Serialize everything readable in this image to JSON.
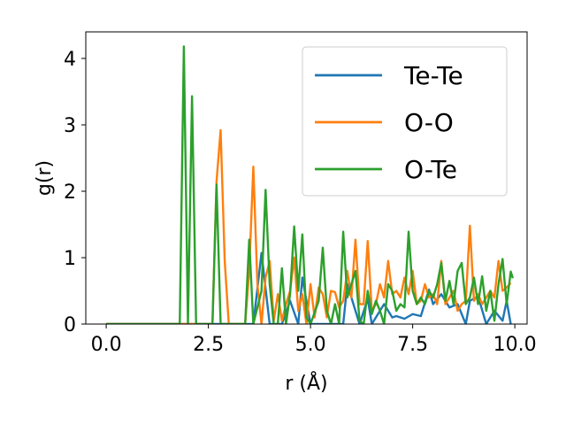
{
  "chart_data": {
    "type": "line",
    "title": "",
    "xlabel": "r (Å)",
    "ylabel": "g(r)",
    "xlim": [
      -0.5,
      10.3
    ],
    "ylim": [
      0,
      4.4
    ],
    "x_ticks": [
      0.0,
      2.5,
      5.0,
      7.5,
      10.0
    ],
    "x_tick_labels": [
      "0.0",
      "2.5",
      "5.0",
      "7.5",
      "10.0"
    ],
    "y_ticks": [
      0,
      1,
      2,
      3,
      4
    ],
    "y_tick_labels": [
      "0",
      "1",
      "2",
      "3",
      "4"
    ],
    "grid": false,
    "legend_position": "top-right",
    "series": [
      {
        "name": "Te-Te",
        "color": "#1f77b4",
        "points": [
          [
            0.0,
            0
          ],
          [
            3.6,
            0
          ],
          [
            3.8,
            1.07
          ],
          [
            4.0,
            0
          ],
          [
            4.1,
            0
          ],
          [
            4.3,
            0
          ],
          [
            4.5,
            0.35
          ],
          [
            4.7,
            0
          ],
          [
            4.8,
            0.7
          ],
          [
            5.0,
            0
          ],
          [
            5.8,
            0
          ],
          [
            5.9,
            0.6
          ],
          [
            6.0,
            0.4
          ],
          [
            6.2,
            0
          ],
          [
            6.4,
            0.38
          ],
          [
            6.5,
            0
          ],
          [
            6.8,
            0.3
          ],
          [
            7.0,
            0.1
          ],
          [
            7.1,
            0.12
          ],
          [
            7.3,
            0.08
          ],
          [
            7.5,
            0.15
          ],
          [
            7.7,
            0.12
          ],
          [
            7.9,
            0.52
          ],
          [
            8.0,
            0.3
          ],
          [
            8.2,
            0.45
          ],
          [
            8.4,
            0.25
          ],
          [
            8.6,
            0.3
          ],
          [
            8.8,
            0.0
          ],
          [
            8.9,
            0.35
          ],
          [
            9.1,
            0.42
          ],
          [
            9.3,
            0.0
          ],
          [
            9.5,
            0.2
          ],
          [
            9.7,
            0.05
          ],
          [
            9.8,
            0.35
          ],
          [
            9.9,
            0.0
          ]
        ]
      },
      {
        "name": "O-O",
        "color": "#ff7f0e",
        "points": [
          [
            0.0,
            0
          ],
          [
            2.6,
            0
          ],
          [
            2.7,
            2.15
          ],
          [
            2.8,
            2.92
          ],
          [
            2.9,
            0.95
          ],
          [
            3.0,
            0
          ],
          [
            3.4,
            0
          ],
          [
            3.5,
            0.8
          ],
          [
            3.6,
            2.37
          ],
          [
            3.7,
            0.6
          ],
          [
            3.8,
            0
          ],
          [
            3.9,
            0.7
          ],
          [
            4.0,
            0.95
          ],
          [
            4.1,
            0.05
          ],
          [
            4.2,
            0.45
          ],
          [
            4.3,
            0.05
          ],
          [
            4.4,
            0.3
          ],
          [
            4.5,
            0.5
          ],
          [
            4.6,
            1.0
          ],
          [
            4.7,
            0.2
          ],
          [
            4.8,
            0.45
          ],
          [
            4.9,
            0.0
          ],
          [
            5.0,
            0.6
          ],
          [
            5.1,
            0.1
          ],
          [
            5.2,
            0.55
          ],
          [
            5.3,
            0.45
          ],
          [
            5.4,
            0.1
          ],
          [
            5.5,
            0.5
          ],
          [
            5.6,
            0.48
          ],
          [
            5.7,
            0.25
          ],
          [
            5.8,
            0.35
          ],
          [
            5.9,
            0.8
          ],
          [
            6.0,
            0.4
          ],
          [
            6.1,
            1.27
          ],
          [
            6.2,
            0.3
          ],
          [
            6.3,
            0.3
          ],
          [
            6.4,
            1.25
          ],
          [
            6.5,
            0.2
          ],
          [
            6.6,
            0.3
          ],
          [
            6.7,
            0.6
          ],
          [
            6.8,
            0.4
          ],
          [
            6.9,
            0.95
          ],
          [
            7.0,
            0.45
          ],
          [
            7.1,
            0.5
          ],
          [
            7.2,
            0.4
          ],
          [
            7.3,
            0.7
          ],
          [
            7.4,
            0.45
          ],
          [
            7.5,
            0.8
          ],
          [
            7.6,
            0.3
          ],
          [
            7.7,
            0.35
          ],
          [
            7.8,
            0.6
          ],
          [
            7.9,
            0.4
          ],
          [
            8.0,
            0.45
          ],
          [
            8.1,
            0.3
          ],
          [
            8.2,
            0.95
          ],
          [
            8.3,
            0.3
          ],
          [
            8.4,
            0.4
          ],
          [
            8.5,
            0.5
          ],
          [
            8.6,
            0.2
          ],
          [
            8.7,
            0.3
          ],
          [
            8.8,
            0.35
          ],
          [
            8.9,
            1.48
          ],
          [
            9.0,
            0.35
          ],
          [
            9.1,
            0.45
          ],
          [
            9.2,
            0.3
          ],
          [
            9.3,
            0.4
          ],
          [
            9.4,
            0.5
          ],
          [
            9.5,
            0.4
          ],
          [
            9.6,
            0.95
          ],
          [
            9.7,
            0.5
          ],
          [
            9.8,
            0.55
          ],
          [
            9.9,
            0.62
          ]
        ]
      },
      {
        "name": "O-Te",
        "color": "#2ca02c",
        "points": [
          [
            0.0,
            0
          ],
          [
            1.8,
            0
          ],
          [
            1.9,
            4.18
          ],
          [
            2.0,
            0
          ],
          [
            2.1,
            3.43
          ],
          [
            2.2,
            0
          ],
          [
            2.6,
            0
          ],
          [
            2.7,
            2.1
          ],
          [
            2.8,
            0
          ],
          [
            3.4,
            0
          ],
          [
            3.5,
            1.27
          ],
          [
            3.6,
            0
          ],
          [
            3.8,
            0.5
          ],
          [
            3.9,
            2.02
          ],
          [
            4.0,
            0.6
          ],
          [
            4.1,
            0.0
          ],
          [
            4.2,
            0.0
          ],
          [
            4.3,
            0.84
          ],
          [
            4.4,
            0.0
          ],
          [
            4.5,
            0.45
          ],
          [
            4.6,
            1.47
          ],
          [
            4.7,
            0.5
          ],
          [
            4.8,
            1.35
          ],
          [
            4.9,
            0.1
          ],
          [
            5.0,
            0.0
          ],
          [
            5.2,
            0.35
          ],
          [
            5.3,
            1.15
          ],
          [
            5.4,
            0.2
          ],
          [
            5.5,
            0.0
          ],
          [
            5.6,
            0.3
          ],
          [
            5.7,
            0.0
          ],
          [
            5.8,
            1.39
          ],
          [
            5.9,
            0.4
          ],
          [
            6.0,
            0.6
          ],
          [
            6.1,
            0.8
          ],
          [
            6.2,
            0.05
          ],
          [
            6.3,
            0.0
          ],
          [
            6.4,
            0.5
          ],
          [
            6.5,
            0.15
          ],
          [
            6.6,
            0.35
          ],
          [
            6.7,
            0.2
          ],
          [
            6.8,
            0.0
          ],
          [
            6.9,
            0.6
          ],
          [
            7.0,
            0.5
          ],
          [
            7.1,
            0.2
          ],
          [
            7.2,
            0.3
          ],
          [
            7.3,
            0.25
          ],
          [
            7.4,
            1.39
          ],
          [
            7.5,
            0.5
          ],
          [
            7.6,
            0.3
          ],
          [
            7.7,
            0.4
          ],
          [
            7.8,
            0.3
          ],
          [
            7.9,
            0.5
          ],
          [
            8.0,
            0.4
          ],
          [
            8.1,
            0.6
          ],
          [
            8.2,
            0.92
          ],
          [
            8.3,
            0.35
          ],
          [
            8.4,
            0.65
          ],
          [
            8.5,
            0.3
          ],
          [
            8.6,
            0.8
          ],
          [
            8.7,
            0.92
          ],
          [
            8.8,
            0.3
          ],
          [
            8.9,
            0.4
          ],
          [
            9.0,
            0.7
          ],
          [
            9.1,
            0.3
          ],
          [
            9.2,
            0.72
          ],
          [
            9.3,
            0.2
          ],
          [
            9.4,
            0.5
          ],
          [
            9.5,
            0.05
          ],
          [
            9.6,
            0.6
          ],
          [
            9.7,
            0.98
          ],
          [
            9.8,
            0.3
          ],
          [
            9.9,
            0.79
          ],
          [
            9.95,
            0.69
          ]
        ]
      }
    ]
  }
}
